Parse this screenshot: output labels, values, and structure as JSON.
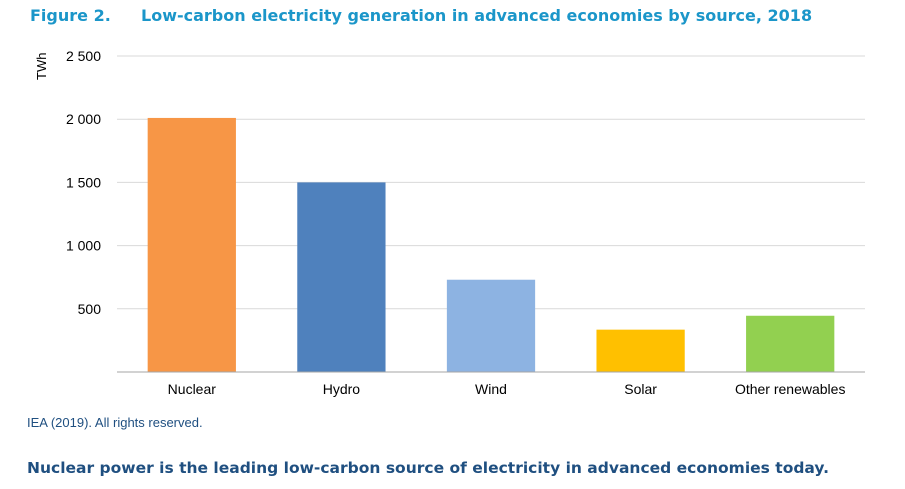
{
  "figure": {
    "number": "Figure 2.",
    "title": "Low-carbon electricity generation in advanced economies by source, 2018"
  },
  "chart_data": {
    "type": "bar",
    "title": "Low-carbon electricity generation in advanced economies by source, 2018",
    "ylabel": "TWh",
    "xlabel": "",
    "categories": [
      "Nuclear",
      "Hydro",
      "Wind",
      "Solar",
      "Other renewables"
    ],
    "values": [
      2010,
      1500,
      730,
      335,
      445
    ],
    "colors": [
      "#f79646",
      "#4f81bd",
      "#8db3e2",
      "#ffc000",
      "#92d050"
    ],
    "ylim": [
      0,
      2500
    ],
    "yticks": [
      0,
      500,
      1000,
      1500,
      2000,
      2500
    ],
    "ytick_labels": [
      "",
      "500",
      "1 000",
      "1 500",
      "2 000",
      "2 500"
    ],
    "grid": true,
    "legend": "none"
  },
  "source": "IEA (2019). All rights reserved.",
  "caption": "Nuclear power is the leading low-carbon source of electricity in advanced economies today."
}
